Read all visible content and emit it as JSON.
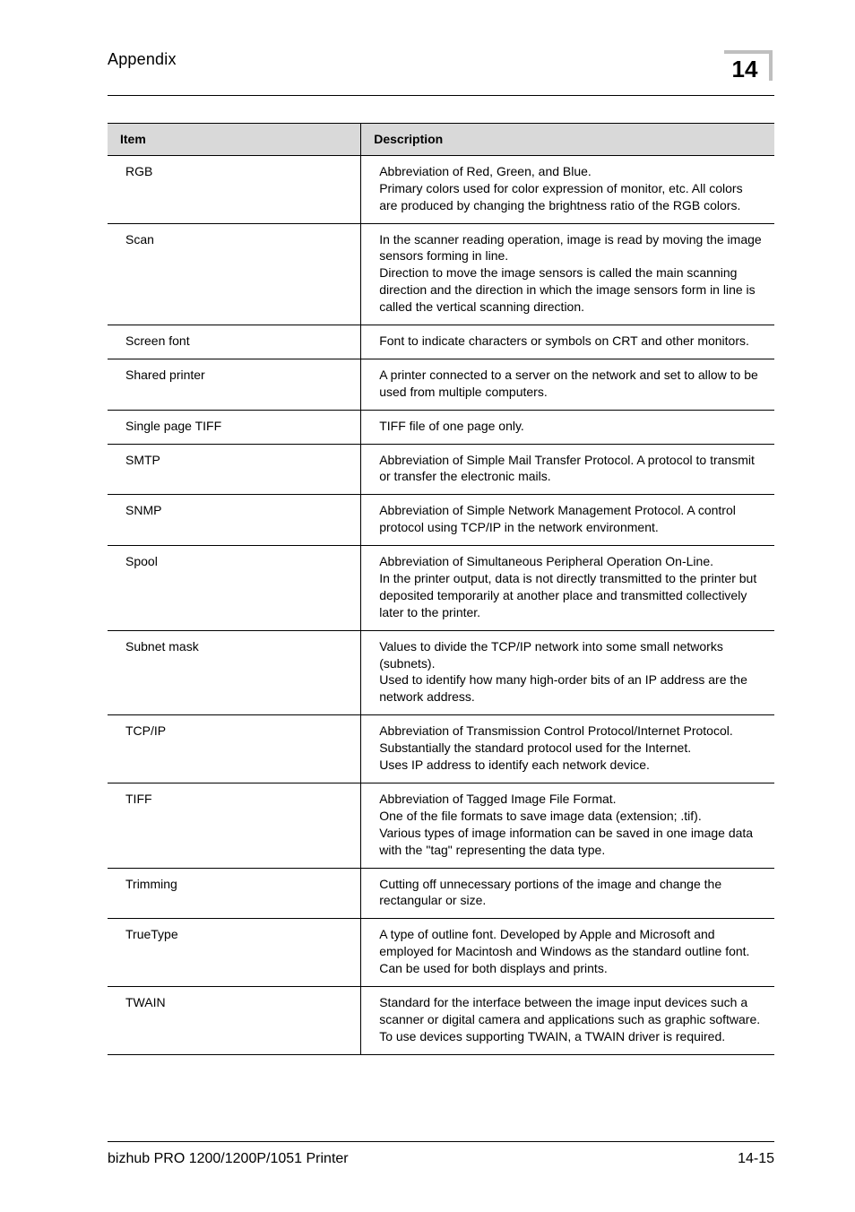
{
  "header": {
    "section": "Appendix",
    "page_badge": "14"
  },
  "table": {
    "headers": {
      "item": "Item",
      "description": "Description"
    },
    "rows": [
      {
        "item": "RGB",
        "description": "Abbreviation of Red, Green, and Blue.\nPrimary colors used for color expression of monitor, etc. All colors are produced by changing the brightness ratio of the RGB colors."
      },
      {
        "item": "Scan",
        "description": "In the scanner reading operation, image is read by moving the image sensors forming in line.\nDirection to move the image sensors is called the main scanning direction and the direction in which the image sensors form in line is called the vertical scanning direction."
      },
      {
        "item": "Screen font",
        "description": "Font to indicate characters or symbols on CRT and other monitors."
      },
      {
        "item": "Shared printer",
        "description": "A printer connected to a server on the network and set to allow to be used from multiple computers."
      },
      {
        "item": "Single page TIFF",
        "description": "TIFF file of one page only."
      },
      {
        "item": "SMTP",
        "description": "Abbreviation of Simple Mail Transfer Protocol. A protocol to transmit or transfer the electronic mails."
      },
      {
        "item": "SNMP",
        "description": "Abbreviation of Simple Network Management Protocol. A control protocol using TCP/IP in the network environment."
      },
      {
        "item": "Spool",
        "description": "Abbreviation of Simultaneous Peripheral Operation On-Line.\nIn the printer output, data is not directly transmitted to the printer but deposited temporarily at another place and transmitted collectively later to the printer."
      },
      {
        "item": "Subnet mask",
        "description": "Values to divide the TCP/IP network into some small networks (subnets).\nUsed to identify how many high-order bits of an IP address are the network address."
      },
      {
        "item": "TCP/IP",
        "description": "Abbreviation of Transmission Control Protocol/Internet Protocol.\nSubstantially the standard protocol used for the Internet.\nUses IP address to identify each network device."
      },
      {
        "item": "TIFF",
        "description": "Abbreviation of Tagged Image File Format.\nOne of the file formats to save image data (extension; .tif).\nVarious types of image information can be saved in one image data with the \"tag\" representing the data type."
      },
      {
        "item": "Trimming",
        "description": "Cutting off unnecessary portions of the image and change the rectangular or size."
      },
      {
        "item": "TrueType",
        "description": "A type of outline font. Developed by Apple and Microsoft and employed for Macintosh and Windows as the standard outline font.\nCan be used for both displays and prints."
      },
      {
        "item": "TWAIN",
        "description": "Standard for the interface between the image input devices such a scanner or digital camera and applications such as graphic software.\nTo use devices supporting TWAIN, a TWAIN driver is required."
      }
    ]
  },
  "footer": {
    "product": "bizhub PRO 1200/1200P/1051 Printer",
    "page": "14-15"
  }
}
